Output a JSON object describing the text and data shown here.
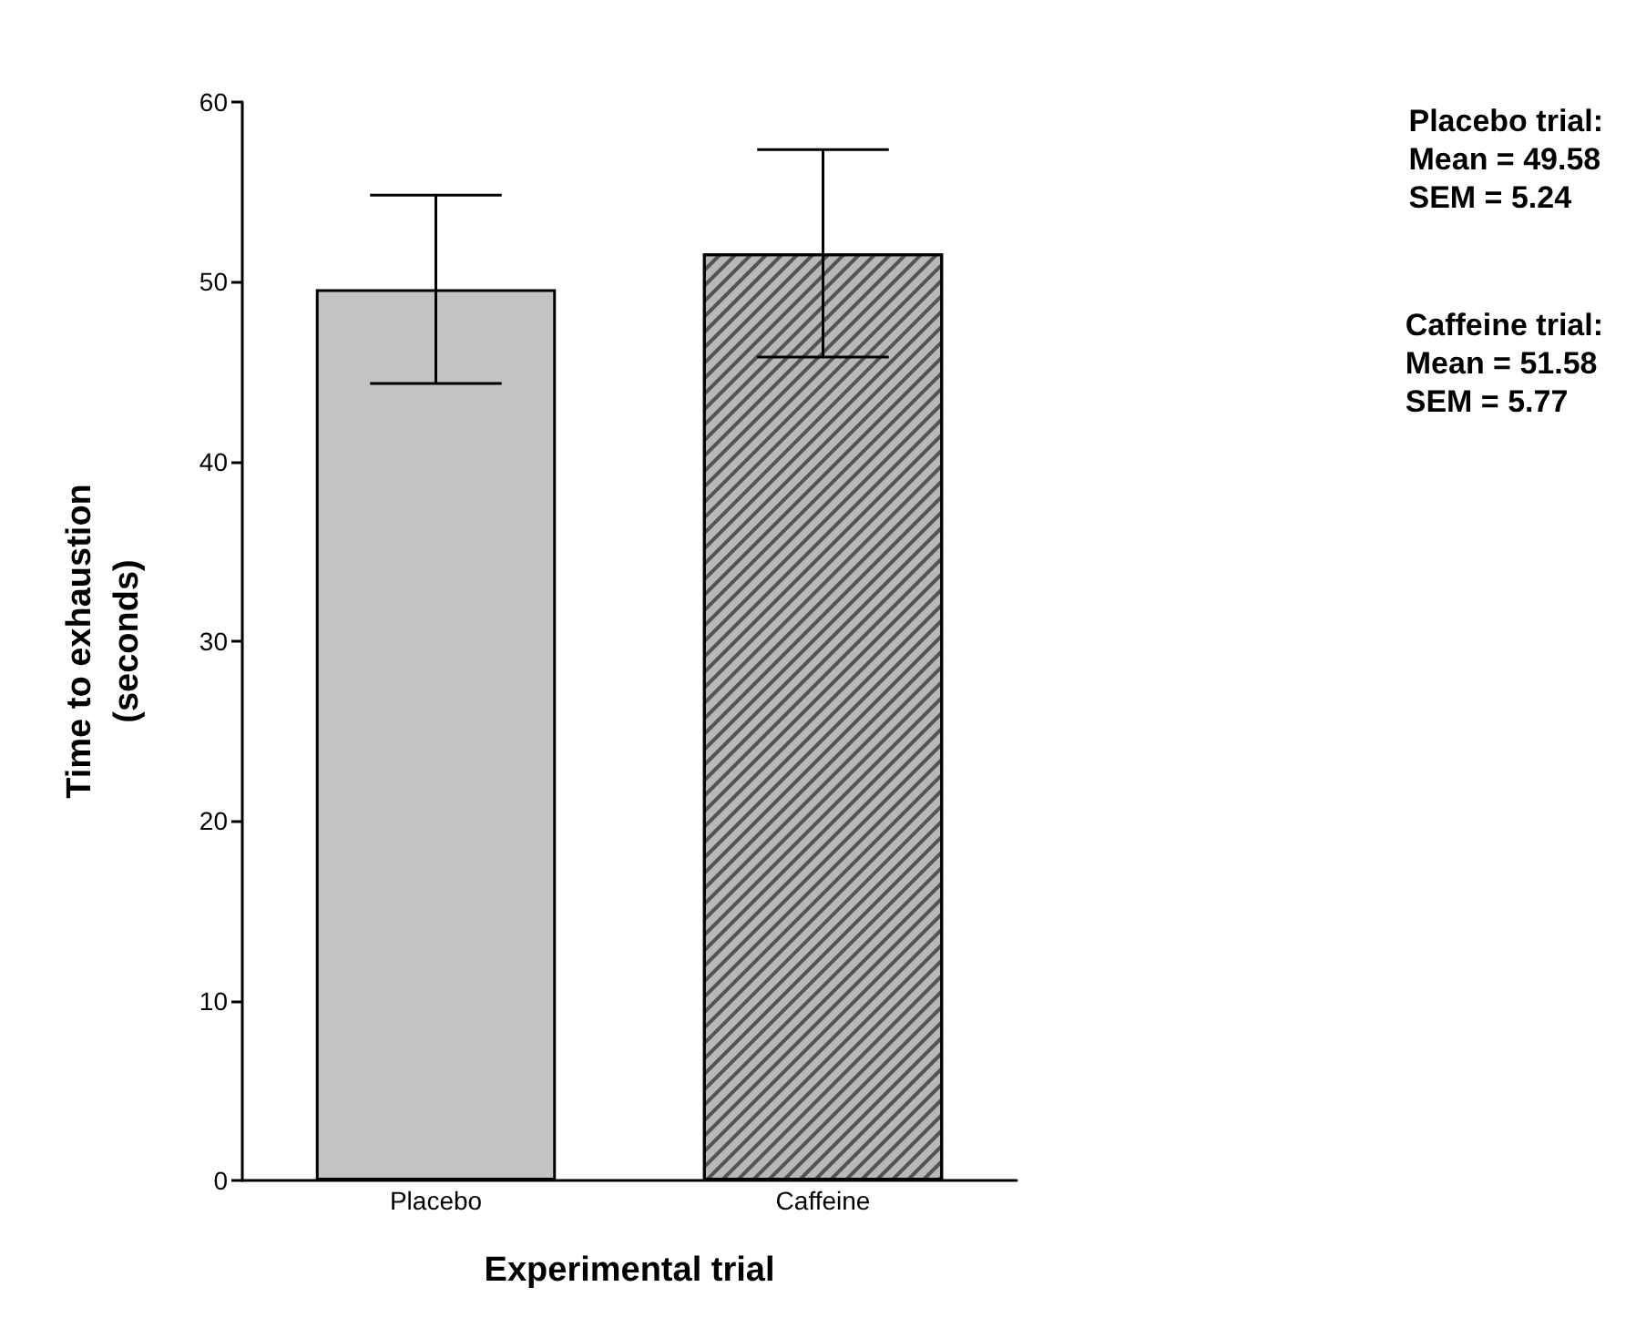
{
  "chart_data": {
    "type": "bar",
    "categories": [
      "Placebo",
      "Caffeine"
    ],
    "values": [
      49.58,
      51.58
    ],
    "errors": [
      5.24,
      5.77
    ],
    "colors": [
      "#c4c4c4",
      "#b8b8b8"
    ],
    "xlabel": "Experimental trial",
    "ylabel": "Time to exhaustion\n(seconds)",
    "ylim": [
      0,
      60
    ],
    "yticks": [
      0,
      10,
      20,
      30,
      40,
      50,
      60
    ],
    "grid": false,
    "annotations": [
      "Placebo trial:\nMean = 49.58\nSEM = 5.24",
      "Caffeine trial:\nMean = 51.58\nSEM = 5.77"
    ]
  }
}
